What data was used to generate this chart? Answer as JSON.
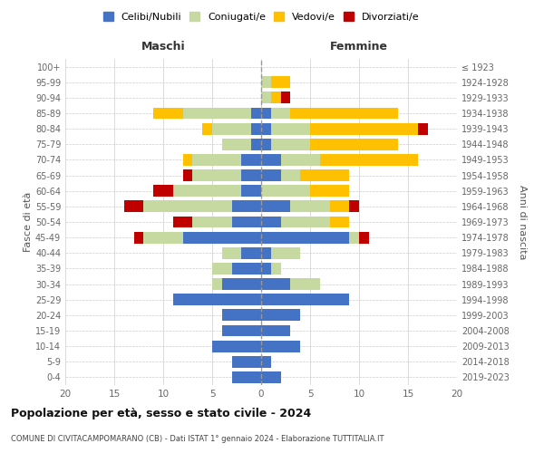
{
  "age_groups": [
    "0-4",
    "5-9",
    "10-14",
    "15-19",
    "20-24",
    "25-29",
    "30-34",
    "35-39",
    "40-44",
    "45-49",
    "50-54",
    "55-59",
    "60-64",
    "65-69",
    "70-74",
    "75-79",
    "80-84",
    "85-89",
    "90-94",
    "95-99",
    "100+"
  ],
  "birth_years": [
    "2019-2023",
    "2014-2018",
    "2009-2013",
    "2004-2008",
    "1999-2003",
    "1994-1998",
    "1989-1993",
    "1984-1988",
    "1979-1983",
    "1974-1978",
    "1969-1973",
    "1964-1968",
    "1959-1963",
    "1954-1958",
    "1949-1953",
    "1944-1948",
    "1939-1943",
    "1934-1938",
    "1929-1933",
    "1924-1928",
    "≤ 1923"
  ],
  "males": {
    "single": [
      3,
      3,
      5,
      4,
      4,
      9,
      4,
      3,
      2,
      8,
      3,
      3,
      2,
      2,
      2,
      1,
      1,
      1,
      0,
      0,
      0
    ],
    "married": [
      0,
      0,
      0,
      0,
      0,
      0,
      1,
      2,
      2,
      4,
      4,
      9,
      7,
      5,
      5,
      3,
      4,
      7,
      0,
      0,
      0
    ],
    "widowed": [
      0,
      0,
      0,
      0,
      0,
      0,
      0,
      0,
      0,
      0,
      0,
      0,
      0,
      0,
      1,
      0,
      1,
      3,
      0,
      0,
      0
    ],
    "divorced": [
      0,
      0,
      0,
      0,
      0,
      0,
      0,
      0,
      0,
      1,
      2,
      2,
      2,
      1,
      0,
      0,
      0,
      0,
      0,
      0,
      0
    ]
  },
  "females": {
    "single": [
      2,
      1,
      4,
      3,
      4,
      9,
      3,
      1,
      1,
      9,
      2,
      3,
      0,
      2,
      2,
      1,
      1,
      1,
      0,
      0,
      0
    ],
    "married": [
      0,
      0,
      0,
      0,
      0,
      0,
      3,
      1,
      3,
      1,
      5,
      4,
      5,
      2,
      4,
      4,
      4,
      2,
      1,
      1,
      0
    ],
    "widowed": [
      0,
      0,
      0,
      0,
      0,
      0,
      0,
      0,
      0,
      0,
      2,
      2,
      4,
      5,
      10,
      9,
      11,
      11,
      1,
      2,
      0
    ],
    "divorced": [
      0,
      0,
      0,
      0,
      0,
      0,
      0,
      0,
      0,
      1,
      0,
      1,
      0,
      0,
      0,
      0,
      1,
      0,
      1,
      0,
      0
    ]
  },
  "colors": {
    "single": "#4472c4",
    "married": "#c5d9a0",
    "widowed": "#ffc000",
    "divorced": "#c00000"
  },
  "title": "Popolazione per età, sesso e stato civile - 2024",
  "subtitle": "COMUNE DI CIVITACAMPOMARANO (CB) - Dati ISTAT 1° gennaio 2024 - Elaborazione TUTTITALIA.IT",
  "ylabel_left": "Fasce di età",
  "ylabel_right": "Anni di nascita",
  "xlabel_left": "Maschi",
  "xlabel_right": "Femmine",
  "xlim": 20,
  "background_color": "#ffffff",
  "grid_color": "#cccccc",
  "legend_labels": [
    "Celibi/Nubili",
    "Coniugati/e",
    "Vedovi/e",
    "Divorziati/e"
  ]
}
